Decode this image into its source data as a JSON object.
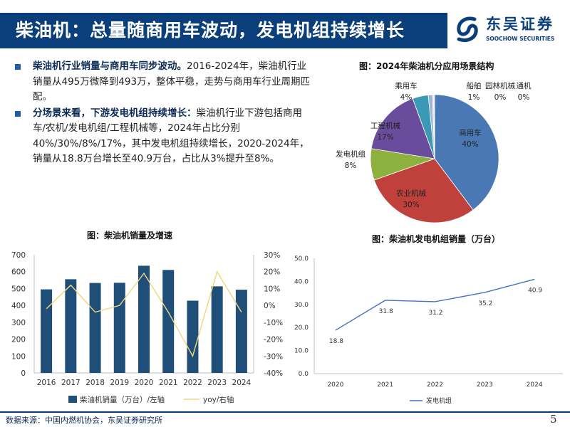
{
  "header": {
    "title": "柴油机：总量随商用车波动，发电机组持续增长",
    "logo_cn": "东吴证券",
    "logo_en": "SOOCHOW SECURITIES"
  },
  "bullets": [
    {
      "bold": "柴油机行业销量与商用车同步波动。",
      "text": "2016-2024年，柴油机行业销量从495万微降到493万，整体平稳，走势与商用车行业周期匹配。"
    },
    {
      "bold": "分场景来看，下游发电机组持续增长：",
      "text": "柴油机行业下游包括商用车/农机/发电机组/工程机械等，2024年占比分别40%/30%/8%/17%，其中发电机组持续增长，2020-2024年，销量从18.8万台增长至40.9万台，占比从3%提升至8%。"
    }
  ],
  "colors": {
    "brand": "#0b3f7c",
    "bar": "#1f4e79",
    "yoy_line": "#f2d67a",
    "gen_line": "#4472c4"
  },
  "chart_data": [
    {
      "id": "pie",
      "type": "pie",
      "title": "图：2024年柴油机分应用场景结构",
      "slices": [
        {
          "label": "商用车",
          "value": 40,
          "pct": "40%",
          "color": "#4a78b5"
        },
        {
          "label": "农业机械",
          "value": 30,
          "pct": "30%",
          "color": "#c0403c"
        },
        {
          "label": "发电机组",
          "value": 8,
          "pct": "8%",
          "color": "#8db13e"
        },
        {
          "label": "工程机械",
          "value": 17,
          "pct": "17%",
          "color": "#6a4c9c"
        },
        {
          "label": "乘用车",
          "value": 4,
          "pct": "4%",
          "color": "#3c99b5"
        },
        {
          "label": "船舶",
          "value": 1,
          "pct": "1%",
          "color": "#9fb3d6"
        },
        {
          "label": "园林机械",
          "value": 0.3,
          "pct": "0%",
          "color": "#b5b5b5"
        },
        {
          "label": "通机",
          "value": 0.3,
          "pct": "0%",
          "color": "#d6cfe6"
        }
      ]
    },
    {
      "id": "sales",
      "type": "bar",
      "title": "图：柴油机销量及增速",
      "categories": [
        "2016",
        "2017",
        "2018",
        "2019",
        "2020",
        "2021",
        "2022",
        "2023",
        "2024"
      ],
      "series": [
        {
          "name": "柴油机销量（万台）/左轴",
          "values": [
            495,
            555,
            533,
            534,
            635,
            610,
            428,
            513,
            493
          ]
        },
        {
          "name": "yoy/右轴",
          "values": [
            -2,
            12,
            -4,
            0,
            19,
            -4,
            -30,
            20,
            -4
          ]
        }
      ],
      "ylim": [
        0,
        700
      ],
      "y_ticks": [
        "0",
        "100",
        "200",
        "300",
        "400",
        "500",
        "600",
        "700"
      ],
      "y2lim": [
        -40,
        30
      ],
      "y2_ticks": [
        "-40%",
        "-30%",
        "-20%",
        "-10%",
        "0%",
        "10%",
        "20%",
        "30%"
      ]
    },
    {
      "id": "gen",
      "type": "line",
      "title": "图：柴油机发电机组销量（万台）",
      "categories": [
        "2020",
        "2021",
        "2022",
        "2023",
        "2024"
      ],
      "series": [
        {
          "name": "发电机组",
          "values": [
            18.8,
            31.8,
            31.2,
            35.2,
            40.9
          ],
          "labels": [
            "18.8",
            "31.8",
            "31.2",
            "35.2",
            "40.9"
          ]
        }
      ],
      "ylim": [
        0,
        50
      ],
      "y_ticks": [
        "0.0",
        "10.0",
        "20.0",
        "30.0",
        "40.0",
        "50.0"
      ]
    }
  ],
  "footer": {
    "source": "数据来源：中国内燃机协会，东吴证券研究所",
    "page": "5"
  }
}
